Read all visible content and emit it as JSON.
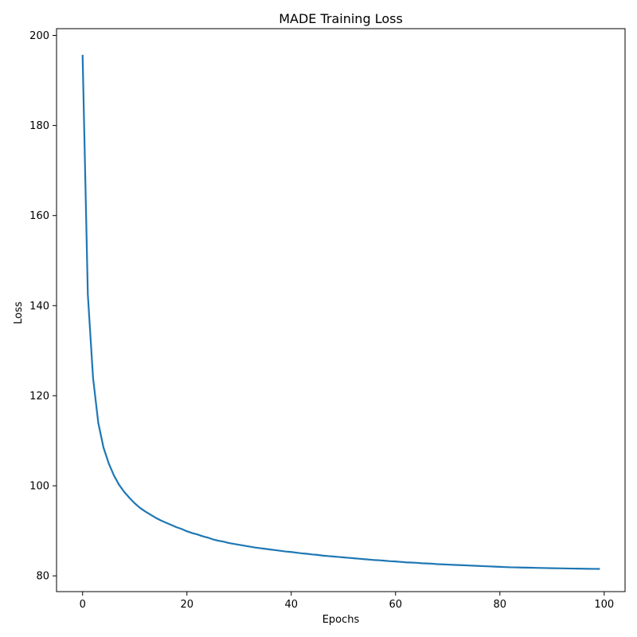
{
  "chart_data": {
    "type": "line",
    "title": "MADE Training Loss",
    "xlabel": "Epochs",
    "ylabel": "Loss",
    "xlim": [
      -5,
      104
    ],
    "ylim": [
      76.5,
      201.5
    ],
    "xticks": [
      0,
      20,
      40,
      60,
      80,
      100
    ],
    "yticks": [
      80,
      100,
      120,
      140,
      160,
      180,
      200
    ],
    "grid": false,
    "legend": "none",
    "series": [
      {
        "color": "#1f77b4",
        "x": [
          0,
          1,
          2,
          3,
          4,
          5,
          6,
          7,
          8,
          9,
          10,
          11,
          12,
          13,
          14,
          15,
          16,
          17,
          18,
          19,
          20,
          21,
          22,
          23,
          24,
          25,
          26,
          27,
          28,
          29,
          30,
          31,
          32,
          33,
          34,
          35,
          36,
          37,
          38,
          39,
          40,
          41,
          42,
          43,
          44,
          45,
          46,
          47,
          48,
          49,
          50,
          51,
          52,
          53,
          54,
          55,
          56,
          57,
          58,
          59,
          60,
          61,
          62,
          63,
          64,
          65,
          66,
          67,
          68,
          69,
          70,
          71,
          72,
          73,
          74,
          75,
          76,
          77,
          78,
          79,
          80,
          81,
          82,
          83,
          84,
          85,
          86,
          87,
          88,
          89,
          90,
          91,
          92,
          93,
          94,
          95,
          96,
          97,
          98,
          99
        ],
        "values": [
          195.5,
          142.5,
          124,
          114,
          108.5,
          105,
          102.3,
          100.2,
          98.6,
          97.3,
          96.1,
          95.1,
          94.3,
          93.6,
          92.9,
          92.3,
          91.8,
          91.3,
          90.8,
          90.4,
          89.9,
          89.5,
          89.2,
          88.8,
          88.5,
          88.1,
          87.8,
          87.6,
          87.3,
          87.1,
          86.9,
          86.7,
          86.5,
          86.3,
          86.15,
          86,
          85.85,
          85.7,
          85.55,
          85.4,
          85.3,
          85.15,
          85,
          84.9,
          84.75,
          84.65,
          84.5,
          84.4,
          84.3,
          84.2,
          84.1,
          84,
          83.9,
          83.8,
          83.7,
          83.6,
          83.5,
          83.45,
          83.35,
          83.25,
          83.2,
          83.1,
          83,
          82.95,
          82.9,
          82.8,
          82.75,
          82.7,
          82.6,
          82.55,
          82.5,
          82.45,
          82.4,
          82.35,
          82.3,
          82.25,
          82.2,
          82.15,
          82.1,
          82.05,
          82,
          81.95,
          81.9,
          81.88,
          81.85,
          81.82,
          81.8,
          81.77,
          81.75,
          81.73,
          81.7,
          81.68,
          81.66,
          81.64,
          81.62,
          81.6,
          81.58,
          81.56,
          81.55,
          81.54
        ]
      }
    ]
  }
}
